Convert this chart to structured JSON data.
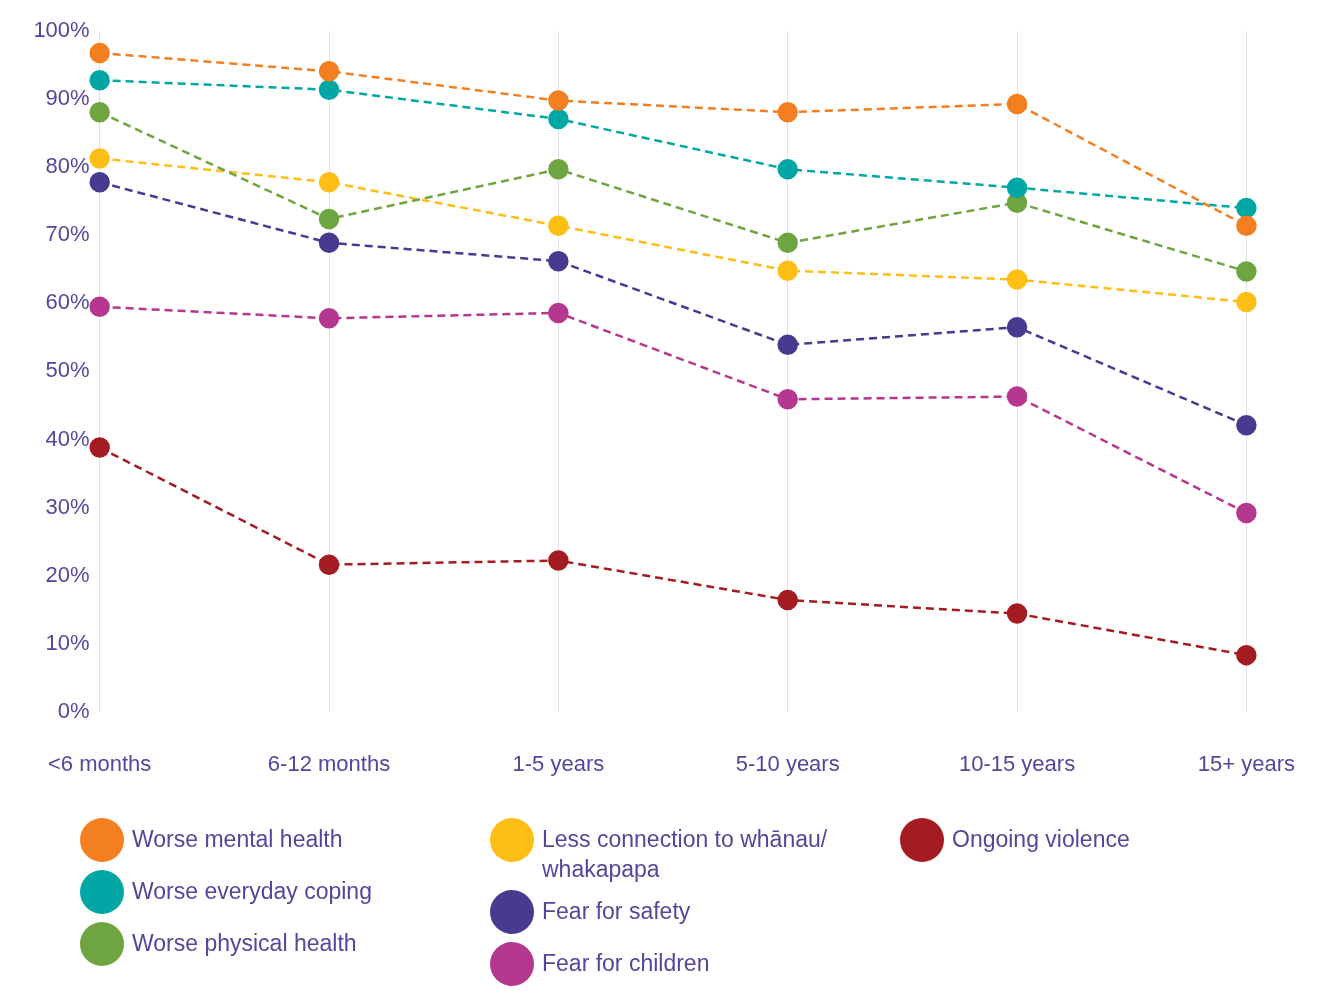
{
  "chart_data": {
    "type": "line",
    "categories": [
      "<6 months",
      "6-12 months",
      "1-5 years",
      "5-10 years",
      "10-15 years",
      "15+ years"
    ],
    "ylim": [
      0,
      100
    ],
    "yticks": [
      {
        "value": 0,
        "label": "0%"
      },
      {
        "value": 10,
        "label": "10%"
      },
      {
        "value": 20,
        "label": "20%"
      },
      {
        "value": 30,
        "label": "30%"
      },
      {
        "value": 40,
        "label": "40%"
      },
      {
        "value": 50,
        "label": "50%"
      },
      {
        "value": 60,
        "label": "60%"
      },
      {
        "value": 70,
        "label": "70%"
      },
      {
        "value": 80,
        "label": "80%"
      },
      {
        "value": 90,
        "label": "90%"
      },
      {
        "value": 100,
        "label": "100%"
      }
    ],
    "grid": "x",
    "legend": "bottom",
    "marker": "circle",
    "line_style": "dashed",
    "series": [
      {
        "name": "Worse mental health",
        "color": "#f47f20",
        "values": [
          96.8,
          94.1,
          89.8,
          88.1,
          89.3,
          71.4
        ]
      },
      {
        "name": "Worse everyday coping",
        "color": "#00a7a4",
        "values": [
          92.8,
          91.4,
          87.1,
          79.7,
          77,
          74
        ]
      },
      {
        "name": "Worse physical health",
        "color": "#6ea540",
        "values": [
          88.1,
          72.4,
          79.7,
          68.9,
          74.8,
          64.7
        ]
      },
      {
        "name": "Less connection to whānau/ whakapapa",
        "color": "#fdbf16",
        "values": [
          81.3,
          77.8,
          71.4,
          64.8,
          63.5,
          60.2
        ]
      },
      {
        "name": "Fear for safety",
        "color": "#473a8f",
        "values": [
          77.8,
          68.9,
          66.2,
          53.9,
          56.5,
          42.1
        ]
      },
      {
        "name": "Fear for children",
        "color": "#b5378f",
        "values": [
          59.5,
          57.8,
          58.6,
          45.9,
          46.3,
          29.2
        ]
      },
      {
        "name": "Ongoing violence",
        "color": "#a31c22",
        "values": [
          38.8,
          21.6,
          22.2,
          16.4,
          14.4,
          8.3
        ]
      }
    ]
  }
}
